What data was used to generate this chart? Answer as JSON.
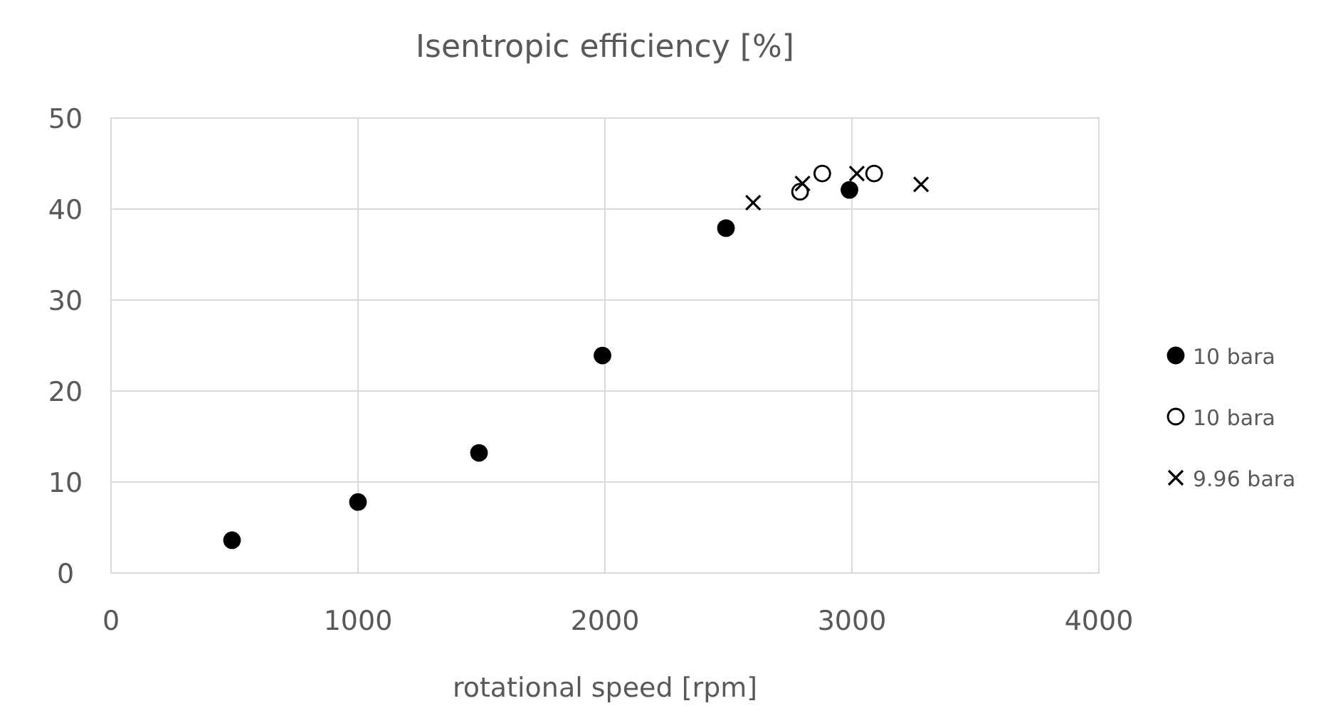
{
  "chart_data": {
    "type": "scatter",
    "title": "Isentropic efficiency [%]",
    "xlabel": "rotational speed [rpm]",
    "xlim": [
      0,
      4000
    ],
    "xticks": [
      0,
      1000,
      2000,
      3000,
      4000
    ],
    "ylim": [
      0,
      50
    ],
    "yticks": [
      0,
      10,
      20,
      30,
      40,
      50
    ],
    "grid": true,
    "legend": "right",
    "series": [
      {
        "name": "10 bara",
        "color": "#000000",
        "marker": "circle",
        "x": [
          490,
          1000,
          1490,
          1990,
          2490,
          2990
        ],
        "values": [
          3.6,
          7.8,
          13.2,
          23.9,
          37.9,
          42.1
        ]
      },
      {
        "name": "10 bara",
        "color": "#000000",
        "marker": "circle",
        "x": [
          2790,
          2880,
          3090
        ],
        "values": [
          41.9,
          43.9,
          43.9
        ]
      },
      {
        "name": "9.96 bara",
        "color": "#000000",
        "marker": "cross",
        "x": [
          2600,
          2800,
          3020,
          3280
        ],
        "values": [
          40.7,
          42.8,
          43.9,
          42.7
        ]
      }
    ]
  }
}
